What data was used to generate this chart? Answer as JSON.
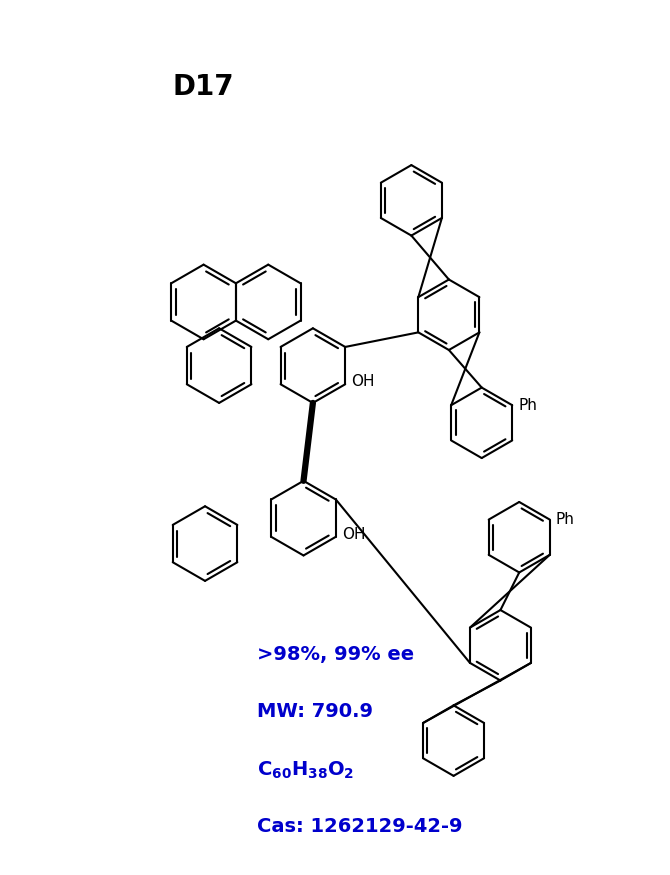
{
  "title": "D17",
  "cas": "Cas: 1262129-42-9",
  "mw": "MW: 790.9",
  "purity": ">98%, 99% ee",
  "title_color": "#000000",
  "info_color": "#0000cc",
  "bg_color": "#ffffff",
  "figsize": [
    6.7,
    8.75
  ],
  "dpi": 100,
  "lw_single": 1.5,
  "lw_bold": 4.5,
  "lw_double_inner": 1.5,
  "bond_color": "#000000",
  "text_color": "#000000"
}
